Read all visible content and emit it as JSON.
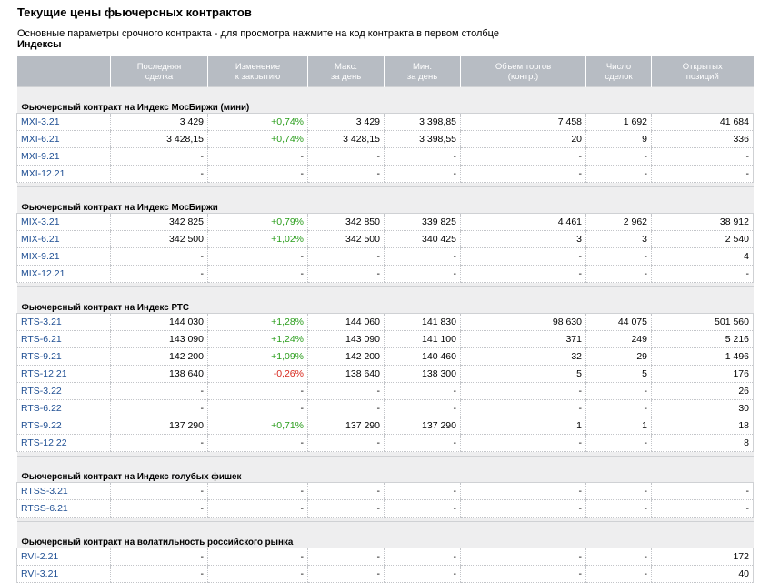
{
  "title": "Текущие цены фьючерсных контрактов",
  "subtitle": "Основные параметры срочного контракта - для просмотра нажмите на код контракта в первом столбце",
  "category": "Индексы",
  "colors": {
    "header_bg": "#b7bcc3",
    "up": "#2a9d1c",
    "down": "#d8271c",
    "link": "#1f4f93",
    "group_bg": "#eeeeef"
  },
  "columns": [
    [
      "",
      ""
    ],
    [
      "Последняя",
      "сделка"
    ],
    [
      "Изменение",
      "к закрытию"
    ],
    [
      "Макс.",
      "за день"
    ],
    [
      "Мин.",
      "за день"
    ],
    [
      "Объем торгов",
      "(контр.)"
    ],
    [
      "Число",
      "сделок"
    ],
    [
      "Открытых",
      "позиций"
    ]
  ],
  "groups": [
    {
      "title": "Фьючерсный контракт на Индекс МосБиржи (мини)",
      "rows": [
        {
          "code": "MXI-3.21",
          "last": "3 429",
          "change": "+0,74%",
          "dir": "up",
          "high": "3 429",
          "low": "3 398,85",
          "volume": "7 458",
          "trades": "1 692",
          "oi": "41 684"
        },
        {
          "code": "MXI-6.21",
          "last": "3 428,15",
          "change": "+0,74%",
          "dir": "up",
          "high": "3 428,15",
          "low": "3 398,55",
          "volume": "20",
          "trades": "9",
          "oi": "336"
        },
        {
          "code": "MXI-9.21",
          "last": "-",
          "change": "-",
          "dir": "",
          "high": "-",
          "low": "-",
          "volume": "-",
          "trades": "-",
          "oi": "-"
        },
        {
          "code": "MXI-12.21",
          "last": "-",
          "change": "-",
          "dir": "",
          "high": "-",
          "low": "-",
          "volume": "-",
          "trades": "-",
          "oi": "-"
        }
      ]
    },
    {
      "title": "Фьючерсный контракт на Индекс МосБиржи",
      "rows": [
        {
          "code": "MIX-3.21",
          "last": "342 825",
          "change": "+0,79%",
          "dir": "up",
          "high": "342 850",
          "low": "339 825",
          "volume": "4 461",
          "trades": "2 962",
          "oi": "38 912"
        },
        {
          "code": "MIX-6.21",
          "last": "342 500",
          "change": "+1,02%",
          "dir": "up",
          "high": "342 500",
          "low": "340 425",
          "volume": "3",
          "trades": "3",
          "oi": "2 540"
        },
        {
          "code": "MIX-9.21",
          "last": "-",
          "change": "-",
          "dir": "",
          "high": "-",
          "low": "-",
          "volume": "-",
          "trades": "-",
          "oi": "4"
        },
        {
          "code": "MIX-12.21",
          "last": "-",
          "change": "-",
          "dir": "",
          "high": "-",
          "low": "-",
          "volume": "-",
          "trades": "-",
          "oi": "-"
        }
      ]
    },
    {
      "title": "Фьючерсный контракт на Индекс РТС",
      "rows": [
        {
          "code": "RTS-3.21",
          "last": "144 030",
          "change": "+1,28%",
          "dir": "up",
          "high": "144 060",
          "low": "141 830",
          "volume": "98 630",
          "trades": "44 075",
          "oi": "501 560"
        },
        {
          "code": "RTS-6.21",
          "last": "143 090",
          "change": "+1,24%",
          "dir": "up",
          "high": "143 090",
          "low": "141 100",
          "volume": "371",
          "trades": "249",
          "oi": "5 216"
        },
        {
          "code": "RTS-9.21",
          "last": "142 200",
          "change": "+1,09%",
          "dir": "up",
          "high": "142 200",
          "low": "140 460",
          "volume": "32",
          "trades": "29",
          "oi": "1 496"
        },
        {
          "code": "RTS-12.21",
          "last": "138 640",
          "change": "-0,26%",
          "dir": "down",
          "high": "138 640",
          "low": "138 300",
          "volume": "5",
          "trades": "5",
          "oi": "176"
        },
        {
          "code": "RTS-3.22",
          "last": "-",
          "change": "-",
          "dir": "",
          "high": "-",
          "low": "-",
          "volume": "-",
          "trades": "-",
          "oi": "26"
        },
        {
          "code": "RTS-6.22",
          "last": "-",
          "change": "-",
          "dir": "",
          "high": "-",
          "low": "-",
          "volume": "-",
          "trades": "-",
          "oi": "30"
        },
        {
          "code": "RTS-9.22",
          "last": "137 290",
          "change": "+0,71%",
          "dir": "up",
          "high": "137 290",
          "low": "137 290",
          "volume": "1",
          "trades": "1",
          "oi": "18"
        },
        {
          "code": "RTS-12.22",
          "last": "-",
          "change": "-",
          "dir": "",
          "high": "-",
          "low": "-",
          "volume": "-",
          "trades": "-",
          "oi": "8"
        }
      ]
    },
    {
      "title": "Фьючерсный контракт на Индекс голубых фишек",
      "rows": [
        {
          "code": "RTSS-3.21",
          "last": "-",
          "change": "-",
          "dir": "",
          "high": "-",
          "low": "-",
          "volume": "-",
          "trades": "-",
          "oi": "-"
        },
        {
          "code": "RTSS-6.21",
          "last": "-",
          "change": "-",
          "dir": "",
          "high": "-",
          "low": "-",
          "volume": "-",
          "trades": "-",
          "oi": "-"
        }
      ]
    },
    {
      "title": "Фьючерсный контракт на волатильность российского рынка",
      "rows": [
        {
          "code": "RVI-2.21",
          "last": "-",
          "change": "-",
          "dir": "",
          "high": "-",
          "low": "-",
          "volume": "-",
          "trades": "-",
          "oi": "172"
        },
        {
          "code": "RVI-3.21",
          "last": "-",
          "change": "-",
          "dir": "",
          "high": "-",
          "low": "-",
          "volume": "-",
          "trades": "-",
          "oi": "40"
        }
      ]
    }
  ]
}
